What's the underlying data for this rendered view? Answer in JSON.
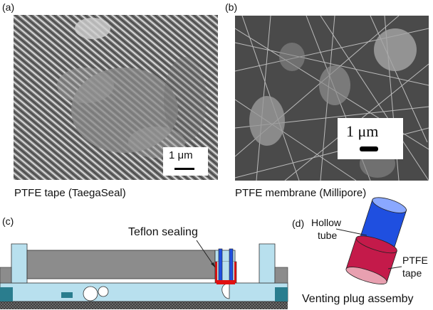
{
  "panels": {
    "a": {
      "label": "(a)",
      "scale_bar": "1 μm",
      "caption": "PTFE tape (TaegaSeal)"
    },
    "b": {
      "label": "(b)",
      "scale_bar": "1 μm",
      "caption": "PTFE membrane (Millipore)"
    },
    "c": {
      "label": "(c)",
      "annotation": "Teflon sealing"
    },
    "d": {
      "label": "(d)",
      "tube_label_1": "Hollow",
      "tube_label_2": "tube",
      "tape_label_1": "PTFE",
      "tape_label_2": "tape",
      "caption": "Venting plug assemby"
    }
  },
  "colors": {
    "tube_blue": "#1f4fe0",
    "tape_red": "#c41a4a",
    "sealing_red": "#e01010",
    "channel_cyan": "#b8e0ee",
    "chip_gray": "#8c8c8c",
    "base_teal": "#2a7d8e"
  }
}
